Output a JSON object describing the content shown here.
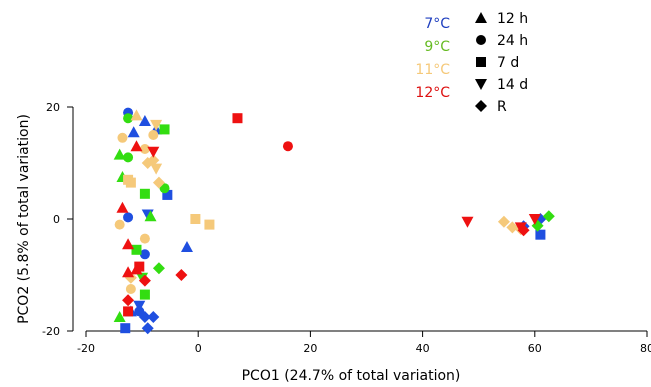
{
  "chart_data": {
    "type": "scatter",
    "xlabel": "PCO1 (24.7% of total variation)",
    "ylabel": "PCO2 (5.8% of total variation)",
    "xlim": [
      -20,
      80
    ],
    "ylim": [
      -20,
      20
    ],
    "xticks": [
      -20,
      0,
      20,
      40,
      60,
      80
    ],
    "yticks": [
      -20,
      0,
      20
    ],
    "xtick_labels": [
      "-20",
      "0",
      "20",
      "40",
      "60",
      "80"
    ],
    "ytick_labels": [
      "-20",
      "0",
      "20"
    ],
    "grid": false,
    "temperature_legend": [
      {
        "label": "7°C",
        "color": "#1f3fbf"
      },
      {
        "label": "9°C",
        "color": "#66bb22"
      },
      {
        "label": "11°C",
        "color": "#f5c97a"
      },
      {
        "label": "12°C",
        "color": "#dd1111"
      }
    ],
    "time_legend": [
      {
        "label": "12 h",
        "marker": "triangle-up"
      },
      {
        "label": "24 h",
        "marker": "circle"
      },
      {
        "label": "7 d",
        "marker": "square"
      },
      {
        "label": "14 d",
        "marker": "triangle-down"
      },
      {
        "label": "R",
        "marker": "diamond"
      }
    ],
    "colors": {
      "7°C": "#1f4fe0",
      "9°C": "#33dd11",
      "11°C": "#f5c97a",
      "12°C": "#ee1111"
    },
    "series": [
      {
        "temp": "7°C",
        "time": "12 h",
        "points": [
          [
            -11.5,
            15.5
          ],
          [
            -9.5,
            17.5
          ],
          [
            -7.5,
            16
          ],
          [
            -12,
            -16.5
          ],
          [
            -2,
            -5
          ]
        ]
      },
      {
        "temp": "7°C",
        "time": "24 h",
        "points": [
          [
            -12.5,
            19
          ],
          [
            -12.5,
            0.3
          ],
          [
            -9.5,
            -6.3
          ],
          [
            -10.5,
            -16.5
          ]
        ]
      },
      {
        "temp": "7°C",
        "time": "7 d",
        "points": [
          [
            -5.5,
            4.3
          ],
          [
            -13,
            -19.5
          ],
          [
            61,
            -2.8
          ]
        ]
      },
      {
        "temp": "7°C",
        "time": "14 d",
        "points": [
          [
            -10.5,
            -15.5
          ],
          [
            -9,
            0.8
          ]
        ]
      },
      {
        "temp": "7°C",
        "time": "R",
        "points": [
          [
            -9.5,
            -17.5
          ],
          [
            -8,
            -17.5
          ],
          [
            -9,
            -19.5
          ],
          [
            58,
            -1.3
          ],
          [
            61,
            0
          ]
        ]
      },
      {
        "temp": "9°C",
        "time": "12 h",
        "points": [
          [
            -14,
            11.5
          ],
          [
            -13.5,
            7.5
          ],
          [
            -14,
            -17.5
          ],
          [
            -8.5,
            0.5
          ]
        ]
      },
      {
        "temp": "9°C",
        "time": "24 h",
        "points": [
          [
            -12.5,
            18
          ],
          [
            -12.5,
            11
          ],
          [
            -6,
            5.5
          ]
        ]
      },
      {
        "temp": "9°C",
        "time": "7 d",
        "points": [
          [
            -6,
            16
          ],
          [
            -9.5,
            4.5
          ],
          [
            -11,
            -5.5
          ],
          [
            -9.5,
            -13.5
          ]
        ]
      },
      {
        "temp": "9°C",
        "time": "14 d",
        "points": [
          [
            -10,
            -10.5
          ]
        ]
      },
      {
        "temp": "9°C",
        "time": "R",
        "points": [
          [
            -7,
            -8.8
          ],
          [
            62.5,
            0.5
          ],
          [
            60.5,
            -1.2
          ]
        ]
      },
      {
        "temp": "11°C",
        "time": "12 h",
        "points": [
          [
            -11,
            18.5
          ]
        ]
      },
      {
        "temp": "11°C",
        "time": "24 h",
        "points": [
          [
            -13.5,
            14.5
          ],
          [
            -8,
            15
          ],
          [
            -9.5,
            12.5
          ],
          [
            -14,
            -1
          ],
          [
            -9.5,
            -3.5
          ],
          [
            -12,
            -12.5
          ]
        ]
      },
      {
        "temp": "11°C",
        "time": "7 d",
        "points": [
          [
            -12.5,
            7
          ],
          [
            -12,
            6.5
          ],
          [
            -0.5,
            0
          ],
          [
            2,
            -1
          ]
        ]
      },
      {
        "temp": "11°C",
        "time": "14 d",
        "points": [
          [
            -7.5,
            16.8
          ],
          [
            -7.5,
            9
          ]
        ]
      },
      {
        "temp": "11°C",
        "time": "R",
        "points": [
          [
            -9,
            10
          ],
          [
            -8,
            10.5
          ],
          [
            -7,
            6.5
          ],
          [
            -12,
            -10.5
          ],
          [
            54.5,
            -0.5
          ],
          [
            56,
            -1.5
          ],
          [
            57.5,
            -1.8
          ]
        ]
      },
      {
        "temp": "12°C",
        "time": "12 h",
        "points": [
          [
            -11,
            13
          ],
          [
            -13.5,
            2
          ],
          [
            -12.5,
            -4.5
          ],
          [
            -12.5,
            -9.5
          ],
          [
            -11,
            -9
          ]
        ]
      },
      {
        "temp": "12°C",
        "time": "24 h",
        "points": [
          [
            16,
            13
          ]
        ]
      },
      {
        "temp": "12°C",
        "time": "7 d",
        "points": [
          [
            7,
            18
          ],
          [
            -10.5,
            -8.5
          ],
          [
            -12.5,
            -16.5
          ]
        ]
      },
      {
        "temp": "12°C",
        "time": "14 d",
        "points": [
          [
            -8,
            12
          ],
          [
            48,
            -0.5
          ],
          [
            60,
            0
          ],
          [
            57.5,
            -1.5
          ]
        ]
      },
      {
        "temp": "12°C",
        "time": "R",
        "points": [
          [
            -12.5,
            -14.5
          ],
          [
            -9.5,
            -11
          ],
          [
            -3,
            -10
          ],
          [
            58,
            -2
          ]
        ]
      }
    ]
  }
}
